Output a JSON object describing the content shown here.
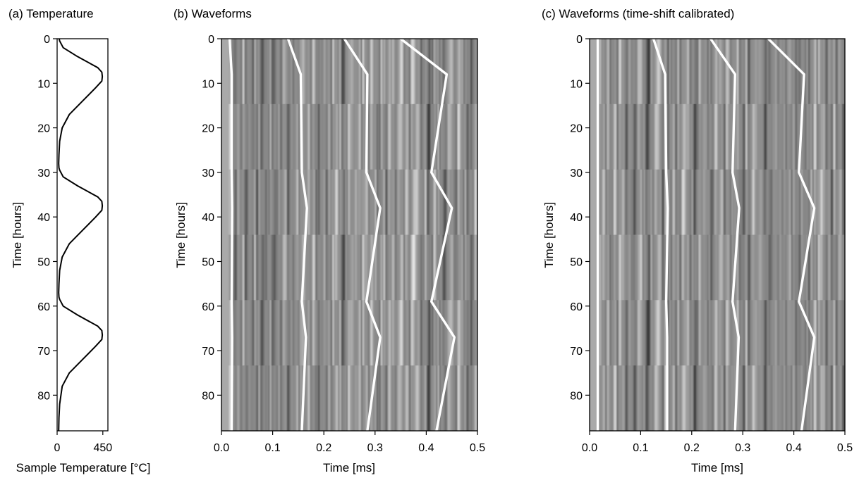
{
  "chart_data": [
    {
      "type": "line",
      "title": "(a) Temperature",
      "xlabel": "Sample Temperature [°C]",
      "ylabel": "Time [hours]",
      "xlim": [
        0,
        500
      ],
      "ylim": [
        88,
        0
      ],
      "xticks": [
        "0",
        "450"
      ],
      "yticks": [
        "0",
        "10",
        "20",
        "30",
        "40",
        "50",
        "60",
        "70",
        "80"
      ],
      "grid": false,
      "series": [
        {
          "x": [
            20,
            25,
            60,
            200,
            400,
            440,
            445,
            440,
            380,
            250,
            120,
            50,
            25,
            18,
            15,
            18,
            25,
            60,
            200,
            400,
            440,
            445,
            440,
            380,
            250,
            120,
            50,
            25,
            18,
            15,
            18,
            25,
            60,
            200,
            400,
            440,
            445,
            440,
            380,
            250,
            120,
            50,
            25,
            18,
            15
          ],
          "y": [
            0,
            0.5,
            2,
            4,
            6.5,
            7.5,
            8.5,
            9.5,
            11,
            14,
            17,
            20,
            23,
            26,
            28,
            29,
            29.5,
            31,
            33,
            35.5,
            36.5,
            37.5,
            38.5,
            40,
            43,
            46,
            49,
            52,
            55,
            57,
            58,
            58.5,
            60,
            62,
            64.5,
            65.5,
            66.5,
            67.5,
            69,
            72,
            75,
            78,
            82,
            85,
            88
          ]
        }
      ]
    },
    {
      "type": "heatmap",
      "title": "(b) Waveforms",
      "xlabel": "Time [ms]",
      "ylabel": "Time [hours]",
      "xlim": [
        0,
        0.5
      ],
      "ylim": [
        88,
        0
      ],
      "xticks": [
        "0.0",
        "0.1",
        "0.2",
        "0.3",
        "0.4",
        "0.5"
      ],
      "yticks": [
        "0",
        "10",
        "20",
        "30",
        "40",
        "50",
        "60",
        "70",
        "80"
      ],
      "grid": false,
      "colormap": "gray",
      "picks": [
        {
          "y": [
            0,
            8,
            30,
            38,
            59,
            67,
            88
          ],
          "x": [
            0.016,
            0.02,
            0.02,
            0.021,
            0.02,
            0.021,
            0.02
          ]
        },
        {
          "y": [
            0,
            8,
            30,
            38,
            59,
            67,
            88
          ],
          "x": [
            0.13,
            0.155,
            0.157,
            0.167,
            0.157,
            0.165,
            0.157
          ]
        },
        {
          "y": [
            0,
            8,
            30,
            38,
            59,
            67,
            88
          ],
          "x": [
            0.24,
            0.285,
            0.283,
            0.31,
            0.283,
            0.31,
            0.285
          ]
        },
        {
          "y": [
            0,
            8,
            30,
            38,
            59,
            67,
            88
          ],
          "x": [
            0.35,
            0.44,
            0.41,
            0.45,
            0.41,
            0.455,
            0.42
          ]
        }
      ]
    },
    {
      "type": "heatmap",
      "title": "(c) Waveforms (time-shift calibrated)",
      "xlabel": "Time [ms]",
      "ylabel": "Time [hours]",
      "xlim": [
        0,
        0.5
      ],
      "ylim": [
        88,
        0
      ],
      "xticks": [
        "0.0",
        "0.1",
        "0.2",
        "0.3",
        "0.4",
        "0.5"
      ],
      "yticks": [
        "0",
        "10",
        "20",
        "30",
        "40",
        "50",
        "60",
        "70",
        "80"
      ],
      "grid": false,
      "colormap": "gray",
      "picks": [
        {
          "y": [
            0,
            8,
            30,
            38,
            59,
            67,
            88
          ],
          "x": [
            0.016,
            0.016,
            0.016,
            0.016,
            0.016,
            0.016,
            0.016
          ]
        },
        {
          "y": [
            0,
            8,
            30,
            38,
            59,
            67,
            88
          ],
          "x": [
            0.125,
            0.148,
            0.15,
            0.153,
            0.15,
            0.152,
            0.152
          ]
        },
        {
          "y": [
            0,
            8,
            30,
            38,
            59,
            67,
            88
          ],
          "x": [
            0.237,
            0.285,
            0.28,
            0.293,
            0.28,
            0.292,
            0.285
          ]
        },
        {
          "y": [
            0,
            8,
            30,
            38,
            59,
            67,
            88
          ],
          "x": [
            0.35,
            0.42,
            0.41,
            0.44,
            0.41,
            0.44,
            0.415
          ]
        }
      ]
    }
  ]
}
